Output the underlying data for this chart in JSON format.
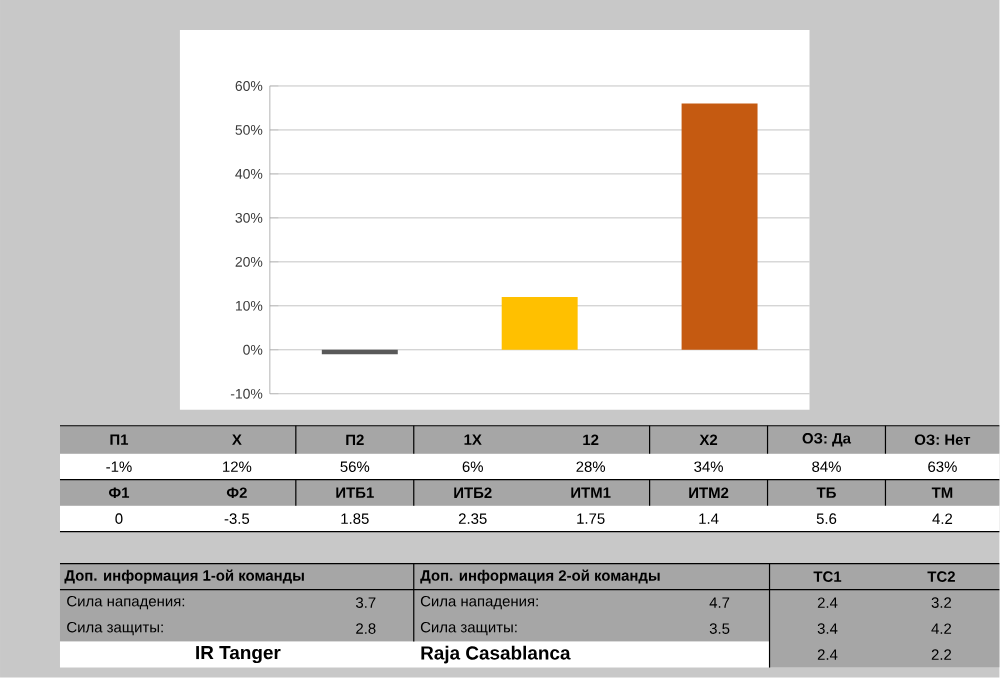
{
  "chart_data": {
    "type": "bar",
    "categories": [
      null,
      null,
      null
    ],
    "values": [
      -1,
      12,
      56
    ],
    "colors": [
      "#595959",
      "#ffc000",
      "#c55a11"
    ],
    "ylim": [
      -10,
      60
    ],
    "yticks": [
      {
        "value": -10,
        "label": "-10%"
      },
      {
        "value": 0,
        "label": "0%"
      },
      {
        "value": 10,
        "label": "10%"
      },
      {
        "value": 20,
        "label": "20%"
      },
      {
        "value": 30,
        "label": "30%"
      },
      {
        "value": 40,
        "label": "40%"
      },
      {
        "value": 50,
        "label": "50%"
      },
      {
        "value": 60,
        "label": "60%"
      }
    ],
    "grid": "y",
    "annotations": [
      "П1",
      "X",
      "П2",
      "1X",
      "12",
      "X2",
      "ОЗ: Да",
      "ОЗ: Нет",
      "-1%",
      "12%",
      "56%",
      "6%",
      "28%",
      "34%",
      "84%",
      "63%",
      "Ф1",
      "Ф2",
      "ИТБ1",
      "ИТБ2",
      "ИТМ1",
      "ИТМ2",
      "ТБ",
      "ТМ",
      "0",
      "-3.5",
      "1.85",
      "2.35",
      "1.75",
      "1.4",
      "5.6",
      "4.2",
      "Доп. информация 1-ой команды",
      "Доп. информация 2-ой команды",
      "ТС1",
      "ТС2",
      "Сила нападения:",
      "3.7",
      "Сила нападения:",
      "4.7",
      "2.4",
      "3.2",
      "Сила защиты:",
      "2.8",
      "Сила защиты:",
      "3.5",
      "3.4",
      "4.2",
      "IR Tanger",
      "Raja Casablanca",
      "2.4",
      "2.2"
    ]
  }
}
